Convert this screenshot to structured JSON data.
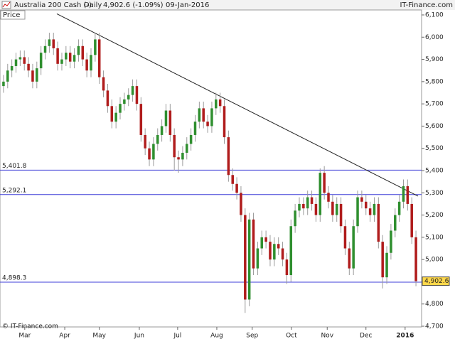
{
  "chart_data": {
    "type": "candlestick",
    "title": "Australia 200 Cash (-)",
    "period": "Daily",
    "last_change": "4,902.6 (-1.09%)",
    "date": "09-Jan-2016",
    "brand": "IT-Finance.com",
    "copyright": "© IT-Finance.com",
    "axis_label": "Price",
    "up_color": "#2f8f2f",
    "down_color": "#b01c1c",
    "wick_color": "#9a9a9a",
    "level_color": "#3f3fd8",
    "trend_color": "#222222",
    "xlim": [
      0,
      100
    ],
    "ylim": [
      4700,
      6100
    ],
    "yticks": [
      {
        "value": 4700,
        "label": "4,700"
      },
      {
        "value": 4800,
        "label": "4,800"
      },
      {
        "value": 4900,
        "label": "4,900"
      },
      {
        "value": 5000,
        "label": "5,000"
      },
      {
        "value": 5100,
        "label": "5,100"
      },
      {
        "value": 5200,
        "label": "5,200"
      },
      {
        "value": 5300,
        "label": "5,300"
      },
      {
        "value": 5400,
        "label": "5,400"
      },
      {
        "value": 5500,
        "label": "5,500"
      },
      {
        "value": 5600,
        "label": "5,600"
      },
      {
        "value": 5700,
        "label": "5,700"
      },
      {
        "value": 5800,
        "label": "5,800"
      },
      {
        "value": 5900,
        "label": "5,900"
      },
      {
        "value": 6000,
        "label": "6,000"
      },
      {
        "value": 6100,
        "label": "6,100"
      }
    ],
    "xticks": [
      {
        "value": 5.6,
        "label": "Mar"
      },
      {
        "value": 15.2,
        "label": "Apr"
      },
      {
        "value": 23.5,
        "label": "May"
      },
      {
        "value": 33.1,
        "label": "Jun"
      },
      {
        "value": 42.3,
        "label": "Jul"
      },
      {
        "value": 51.7,
        "label": "Aug"
      },
      {
        "value": 60.2,
        "label": "Sep"
      },
      {
        "value": 69.6,
        "label": "Oct"
      },
      {
        "value": 78.2,
        "label": "Nov"
      },
      {
        "value": 87.5,
        "label": "Dec"
      },
      {
        "value": 96.9,
        "label": "2016"
      }
    ],
    "levels": [
      {
        "value": 5401.8,
        "label": "5,401.8"
      },
      {
        "value": 5292.1,
        "label": "5,292.1"
      },
      {
        "value": 4898.3,
        "label": "4,898.3"
      }
    ],
    "last_price": {
      "value": 4902.6,
      "label": "4,902.6"
    },
    "trendline": {
      "x": [
        13.3,
        100
      ],
      "y": [
        6105,
        5285
      ]
    },
    "open": [
      5780,
      5800,
      5850,
      5870,
      5900,
      5910,
      5880,
      5850,
      5800,
      5860,
      5930,
      5960,
      5990,
      5950,
      5880,
      5900,
      5930,
      5890,
      5920,
      5960,
      5900,
      5850,
      5920,
      5990,
      5820,
      5760,
      5690,
      5620,
      5660,
      5700,
      5720,
      5740,
      5780,
      5700,
      5560,
      5500,
      5450,
      5520,
      5560,
      5600,
      5670,
      5560,
      5460,
      5450,
      5480,
      5520,
      5560,
      5620,
      5680,
      5620,
      5600,
      5680,
      5720,
      5690,
      5550,
      5380,
      5340,
      5300,
      5200,
      4820,
      5180,
      4960,
      5050,
      5100,
      5080,
      5000,
      5070,
      5050,
      5000,
      4930,
      5150,
      5220,
      5250,
      5230,
      5280,
      5250,
      5200,
      5390,
      5300,
      5260,
      5200,
      5250,
      5150,
      5050,
      4960,
      5150,
      5280,
      5260,
      5230,
      5200,
      5250,
      5080,
      4920,
      5030,
      5130,
      5200,
      5260,
      5330,
      5250,
      5100
    ],
    "high": [
      5830,
      5880,
      5900,
      5930,
      5940,
      5940,
      5910,
      5880,
      5890,
      5960,
      5990,
      6020,
      6020,
      5980,
      5930,
      5960,
      5960,
      5950,
      5990,
      5990,
      5930,
      5950,
      6020,
      6020,
      5850,
      5790,
      5720,
      5690,
      5730,
      5750,
      5770,
      5810,
      5810,
      5730,
      5590,
      5530,
      5550,
      5590,
      5630,
      5700,
      5700,
      5590,
      5490,
      5510,
      5550,
      5590,
      5650,
      5710,
      5710,
      5650,
      5710,
      5750,
      5750,
      5720,
      5580,
      5410,
      5370,
      5330,
      5230,
      5210,
      5210,
      5080,
      5130,
      5130,
      5110,
      5100,
      5100,
      5080,
      5030,
      5180,
      5250,
      5280,
      5280,
      5310,
      5310,
      5280,
      5410,
      5420,
      5330,
      5290,
      5280,
      5280,
      5180,
      5080,
      5180,
      5310,
      5310,
      5290,
      5260,
      5280,
      5280,
      5110,
      5060,
      5160,
      5230,
      5290,
      5360,
      5360,
      5280,
      5130
    ],
    "low": [
      5750,
      5770,
      5820,
      5840,
      5870,
      5850,
      5820,
      5770,
      5770,
      5830,
      5900,
      5930,
      5920,
      5850,
      5850,
      5870,
      5860,
      5860,
      5890,
      5870,
      5820,
      5820,
      5890,
      5790,
      5730,
      5660,
      5590,
      5590,
      5630,
      5670,
      5690,
      5710,
      5670,
      5530,
      5470,
      5420,
      5420,
      5490,
      5530,
      5570,
      5530,
      5400,
      5390,
      5420,
      5450,
      5490,
      5530,
      5590,
      5590,
      5570,
      5570,
      5650,
      5660,
      5520,
      5350,
      5310,
      5270,
      5170,
      4760,
      4790,
      4930,
      4930,
      5020,
      5050,
      4970,
      4970,
      5020,
      4970,
      4890,
      4900,
      5120,
      5190,
      5200,
      5200,
      5220,
      5170,
      5170,
      5270,
      5230,
      5170,
      5170,
      5120,
      5020,
      4930,
      4930,
      5120,
      5230,
      5200,
      5170,
      5170,
      5050,
      4870,
      4890,
      5000,
      5100,
      5170,
      5230,
      5220,
      5070,
      4880
    ],
    "close": [
      5800,
      5850,
      5870,
      5900,
      5910,
      5880,
      5850,
      5800,
      5860,
      5930,
      5960,
      5990,
      5950,
      5880,
      5900,
      5930,
      5890,
      5920,
      5960,
      5900,
      5850,
      5920,
      5990,
      5820,
      5760,
      5690,
      5620,
      5660,
      5700,
      5720,
      5740,
      5780,
      5700,
      5560,
      5500,
      5450,
      5520,
      5560,
      5600,
      5670,
      5560,
      5460,
      5450,
      5480,
      5520,
      5560,
      5620,
      5680,
      5620,
      5600,
      5680,
      5720,
      5690,
      5550,
      5380,
      5340,
      5300,
      5200,
      4820,
      5180,
      4960,
      5050,
      5100,
      5080,
      5000,
      5070,
      5050,
      5000,
      4930,
      5150,
      5220,
      5250,
      5230,
      5280,
      5250,
      5200,
      5390,
      5300,
      5260,
      5200,
      5250,
      5150,
      5050,
      4960,
      5150,
      5280,
      5260,
      5230,
      5200,
      5250,
      5080,
      4920,
      5030,
      5130,
      5200,
      5260,
      5330,
      5250,
      5100,
      4902.6
    ]
  }
}
